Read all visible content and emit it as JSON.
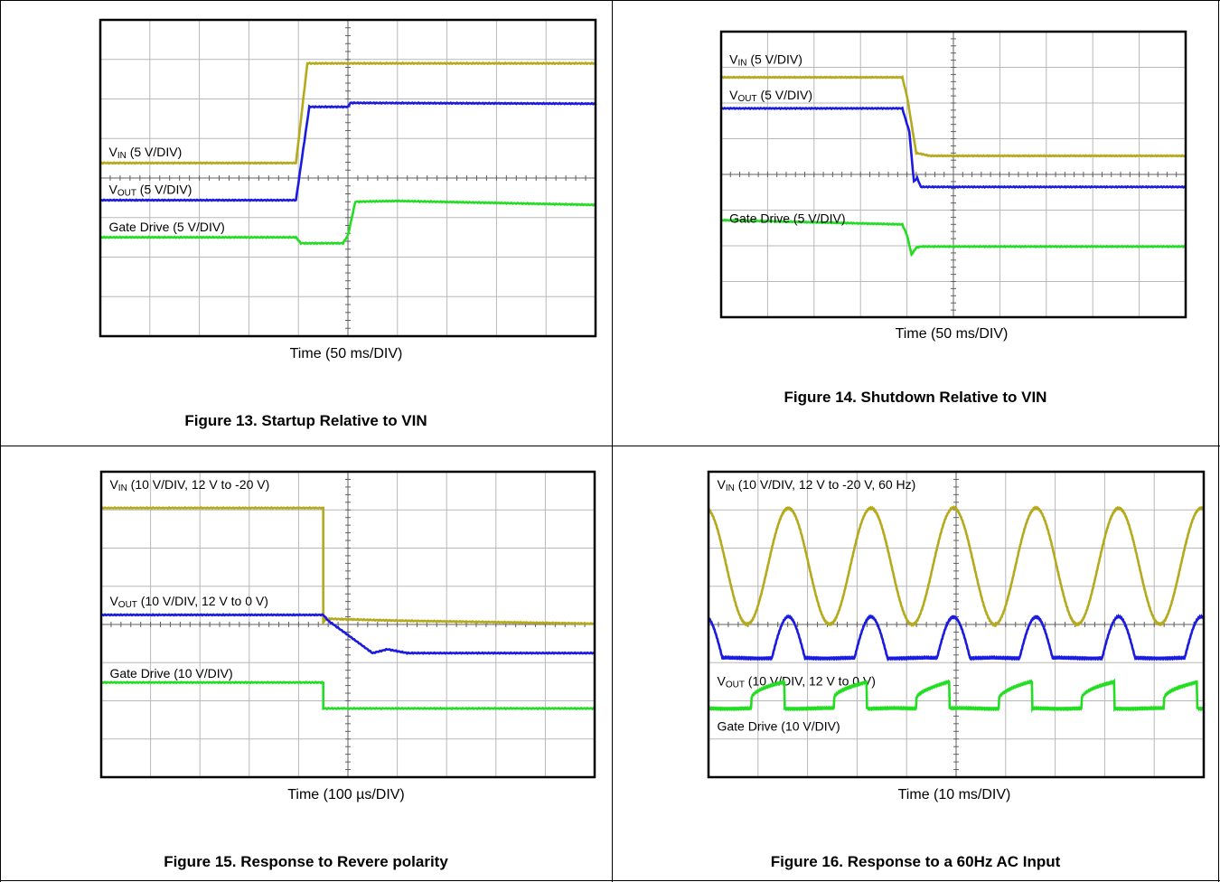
{
  "chart_data": [
    {
      "type": "line",
      "caption": "Figure 13. Startup Relative to VIN",
      "xlabel": "Time (50 ms/DIV)",
      "grid": {
        "xdiv": 10,
        "ydiv": 8
      },
      "xlim": [
        0,
        10
      ],
      "ylim": [
        0,
        8
      ],
      "series": [
        {
          "label_main": "V",
          "label_sub": "IN",
          "label_rest": " (5 V/DIV)",
          "color": "#b5a91c",
          "label_at": [
            0.1,
            4.55
          ],
          "points": [
            [
              0,
              4.38
            ],
            [
              3.95,
              4.38
            ],
            [
              4.18,
              6.9
            ],
            [
              10,
              6.9
            ]
          ]
        },
        {
          "label_main": "V",
          "label_sub": "OUT",
          "label_rest": " (5 V/DIV)",
          "color": "#1a1ae0",
          "label_at": [
            0.1,
            3.6
          ],
          "points": [
            [
              0,
              3.44
            ],
            [
              3.95,
              3.44
            ],
            [
              4.22,
              5.8
            ],
            [
              5.0,
              5.8
            ],
            [
              5.05,
              5.9
            ],
            [
              10,
              5.88
            ]
          ]
        },
        {
          "label_main": "Gate Drive (5 V/DIV)",
          "label_sub": "",
          "label_rest": "",
          "color": "#22dd22",
          "label_at": [
            0.1,
            2.65
          ],
          "points": [
            [
              0,
              2.5
            ],
            [
              3.95,
              2.5
            ],
            [
              4.05,
              2.35
            ],
            [
              4.9,
              2.35
            ],
            [
              5.0,
              2.55
            ],
            [
              5.15,
              3.4
            ],
            [
              6,
              3.42
            ],
            [
              10,
              3.32
            ]
          ]
        }
      ]
    },
    {
      "type": "line",
      "caption": "Figure 14. Shutdown Relative to VIN",
      "xlabel": "Time (50 ms/DIV)",
      "grid": {
        "xdiv": 10,
        "ydiv": 8
      },
      "xlim": [
        0,
        10
      ],
      "ylim": [
        0,
        8
      ],
      "series": [
        {
          "label_main": "V",
          "label_sub": "IN",
          "label_rest": " (5 V/DIV)",
          "color": "#b5a91c",
          "label_at": [
            0.1,
            7.1
          ],
          "points": [
            [
              0,
              6.72
            ],
            [
              3.9,
              6.72
            ],
            [
              4.0,
              6.2
            ],
            [
              4.2,
              4.6
            ],
            [
              4.5,
              4.52
            ],
            [
              10,
              4.52
            ]
          ]
        },
        {
          "label_main": "V",
          "label_sub": "OUT",
          "label_rest": " (5 V/DIV)",
          "color": "#1a1ae0",
          "label_at": [
            0.1,
            6.1
          ],
          "points": [
            [
              0,
              5.85
            ],
            [
              3.9,
              5.85
            ],
            [
              4.05,
              5.2
            ],
            [
              4.15,
              3.8
            ],
            [
              4.22,
              3.9
            ],
            [
              4.3,
              3.65
            ],
            [
              10,
              3.65
            ]
          ]
        },
        {
          "label_main": "Gate Drive (5 V/DIV)",
          "label_sub": "",
          "label_rest": "",
          "color": "#22dd22",
          "label_at": [
            0.1,
            2.65
          ],
          "points": [
            [
              0,
              2.72
            ],
            [
              3.9,
              2.6
            ],
            [
              4.0,
              2.3
            ],
            [
              4.1,
              1.75
            ],
            [
              4.2,
              1.95
            ],
            [
              4.3,
              1.98
            ],
            [
              10,
              1.98
            ]
          ]
        }
      ]
    },
    {
      "type": "line",
      "caption": "Figure 15. Response to Revere polarity",
      "xlabel": "Time (100 µs/DIV)",
      "grid": {
        "xdiv": 10,
        "ydiv": 8
      },
      "xlim": [
        0,
        10
      ],
      "ylim": [
        0,
        8
      ],
      "series": [
        {
          "label_main": "V",
          "label_sub": "IN",
          "label_rest": " (10 V/DIV, 12 V to -20 V)",
          "color": "#b5a91c",
          "label_at": [
            0.1,
            7.55
          ],
          "points": [
            [
              0,
              7.05
            ],
            [
              4.5,
              7.05
            ],
            [
              4.5,
              4.05
            ],
            [
              4.55,
              4.15
            ],
            [
              6,
              4.1
            ],
            [
              10,
              4.02
            ]
          ]
        },
        {
          "label_main": "V",
          "label_sub": "OUT",
          "label_rest": " (10 V/DIV, 12 V to 0 V)",
          "color": "#1a1ae0",
          "label_at": [
            0.1,
            4.5
          ],
          "points": [
            [
              0,
              4.25
            ],
            [
              4.5,
              4.25
            ],
            [
              4.6,
              4.1
            ],
            [
              5.5,
              3.25
            ],
            [
              5.8,
              3.35
            ],
            [
              6.2,
              3.25
            ],
            [
              10,
              3.25
            ]
          ]
        },
        {
          "label_main": "Gate Drive (10 V/DIV)",
          "label_sub": "",
          "label_rest": "",
          "color": "#22dd22",
          "label_at": [
            0.1,
            2.6
          ],
          "points": [
            [
              0,
              2.48
            ],
            [
              4.5,
              2.48
            ],
            [
              4.5,
              1.8
            ],
            [
              10,
              1.8
            ]
          ]
        }
      ]
    },
    {
      "type": "line",
      "caption": "Figure 16. Response to a 60Hz AC Input",
      "xlabel": "Time (10 ms/DIV)",
      "grid": {
        "xdiv": 10,
        "ydiv": 8
      },
      "xlim": [
        0,
        10
      ],
      "ylim": [
        0,
        8
      ],
      "series": [
        {
          "label_main": "V",
          "label_sub": "IN",
          "label_rest": " (10 V/DIV, 12 V to -20 V, 60 Hz)",
          "color": "#b5a91c",
          "label_at": [
            0.1,
            7.55
          ],
          "wave": {
            "kind": "sine",
            "period": 1.667,
            "phase": 0.78,
            "low": 4.0,
            "high": 7.05
          }
        },
        {
          "label_main": "V",
          "label_sub": "OUT",
          "label_rest": " (10 V/DIV, 12 V to 0 V)",
          "color": "#1a1ae0",
          "label_at": [
            0.1,
            2.4
          ],
          "wave": {
            "kind": "halfsine",
            "period": 1.667,
            "phase": 0.78,
            "low": 3.12,
            "high": 4.2
          }
        },
        {
          "label_main": "Gate Drive (10 V/DIV)",
          "label_sub": "",
          "label_rest": "",
          "color": "#22dd22",
          "label_at": [
            0.1,
            1.22
          ],
          "wave": {
            "kind": "saw",
            "period": 1.667,
            "phase": 0.78,
            "low": 1.8,
            "high": 2.5
          }
        }
      ]
    }
  ]
}
